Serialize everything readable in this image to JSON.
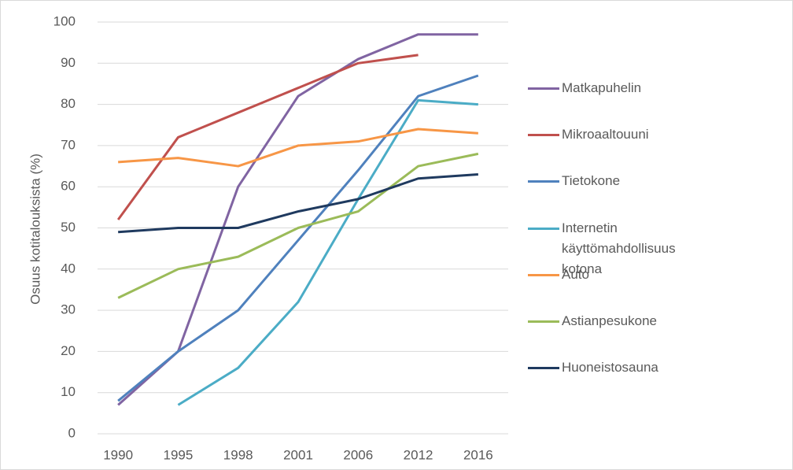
{
  "chart_data": {
    "type": "line",
    "y_label": "Osuus kotitalouksista (%)",
    "categories": [
      "1990",
      "1995",
      "1998",
      "2001",
      "2006",
      "2012",
      "2016"
    ],
    "ylim": [
      0,
      100
    ],
    "yticks": [
      0,
      10,
      20,
      30,
      40,
      50,
      60,
      70,
      80,
      90,
      100
    ],
    "grid": true,
    "series": [
      {
        "name": "Matkapuhelin",
        "color": "#8064a2",
        "values": [
          7,
          20,
          60,
          82,
          91,
          97,
          97
        ]
      },
      {
        "name": "Mikroaaltouuni",
        "color": "#c0504d",
        "values": [
          52,
          72,
          78,
          84,
          90,
          92,
          null
        ]
      },
      {
        "name": "Tietokone",
        "color": "#4f81bd",
        "values": [
          8,
          20,
          30,
          47,
          64,
          82,
          87
        ]
      },
      {
        "name": "Internetin käyttömahdollisuus kotona",
        "color": "#4bacc6",
        "values": [
          null,
          7,
          16,
          32,
          57,
          81,
          80
        ]
      },
      {
        "name": "Auto",
        "color": "#f79646",
        "values": [
          66,
          67,
          65,
          70,
          71,
          74,
          73
        ]
      },
      {
        "name": "Astianpesukone",
        "color": "#9bbb59",
        "values": [
          33,
          40,
          43,
          50,
          54,
          65,
          68
        ]
      },
      {
        "name": "Huoneistosauna",
        "color": "#1f3a5f",
        "values": [
          49,
          50,
          50,
          54,
          57,
          62,
          63
        ]
      }
    ]
  }
}
